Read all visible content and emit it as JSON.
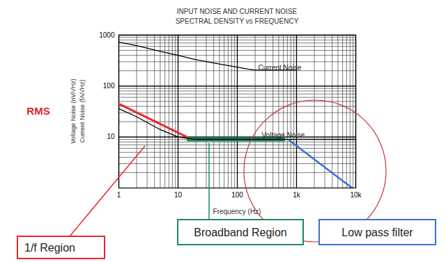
{
  "chart_data": {
    "type": "line",
    "title": "INPUT NOISE AND CURRENT NOISE",
    "subtitle": "SPECTRAL DENSITY vs FREQUENCY",
    "x_label": "Frequency (Hz)",
    "y_label": [
      "Voltage Noise (nV/√Hz)",
      "Current Noise (fA/√Hz)"
    ],
    "log": true,
    "grid": true,
    "xlim": [
      1,
      10000
    ],
    "ylim": [
      1,
      1000
    ],
    "xticks": [
      1,
      10,
      100,
      {
        "value": 1000,
        "label": "1k"
      },
      {
        "value": 10000,
        "label": "10k"
      }
    ],
    "yticks": [
      10,
      100,
      1000
    ],
    "series": [
      {
        "name": "Current Noise",
        "color": "#000000",
        "x": [
          1,
          2,
          5,
          10,
          20,
          50,
          100,
          150,
          200,
          1000
        ],
        "values": [
          730,
          620,
          480,
          400,
          330,
          270,
          235,
          215,
          205,
          205
        ]
      },
      {
        "name": "Voltage Noise",
        "color": "#000000",
        "x": [
          1,
          2,
          5,
          10,
          20,
          50,
          100,
          200,
          500,
          1000,
          2000,
          5000,
          10000
        ],
        "values": [
          36,
          25,
          14,
          10,
          9,
          9,
          9,
          9,
          9,
          9,
          9,
          9,
          9
        ]
      }
    ],
    "annotations": [
      {
        "text": "RMS",
        "color": "#d9262c"
      },
      {
        "text": "1/f Region",
        "color": "#e8262c",
        "x": [
          1,
          17
        ],
        "values": [
          45,
          9
        ]
      },
      {
        "text": "Broadband Region",
        "color": "#1f8a5c",
        "x": [
          15,
          600
        ],
        "values": [
          9,
          9
        ]
      },
      {
        "text": "Low pass filter",
        "color": "#3a6fd8",
        "x": [
          760,
          8700
        ],
        "values": [
          8.5,
          1
        ]
      }
    ]
  }
}
